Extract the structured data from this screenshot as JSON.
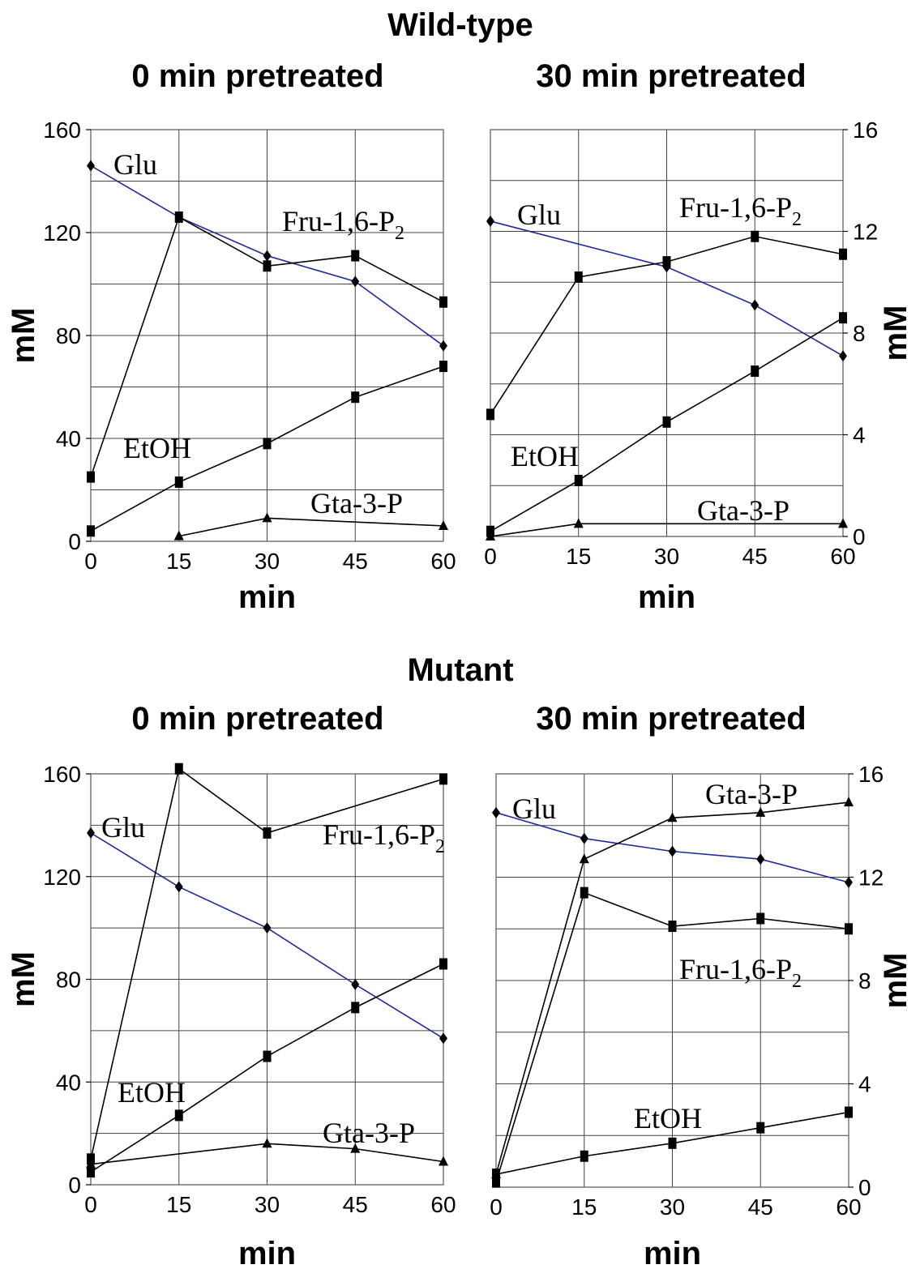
{
  "figure": {
    "sections": [
      {
        "title": "Wild-type"
      },
      {
        "title": "Mutant"
      }
    ]
  },
  "chart_data": [
    {
      "type": "line",
      "section": "Wild-type",
      "title": "0 min pretreated",
      "xlabel": "min",
      "ylabel": "mM",
      "axis_side": "left",
      "x": [
        0,
        15,
        30,
        45,
        60
      ],
      "xlim": [
        0,
        60
      ],
      "ylim": [
        0,
        160
      ],
      "yticks": [
        0,
        40,
        80,
        120,
        160
      ],
      "grid": true,
      "series": [
        {
          "name": "Glu",
          "marker": "diamond",
          "color": "#1f2a9e",
          "values": [
            146,
            126,
            111,
            101,
            76
          ]
        },
        {
          "name": "Fru-1,6-P2",
          "marker": "square",
          "color": "#000000",
          "values": [
            25,
            126,
            107,
            111,
            93
          ]
        },
        {
          "name": "EtOH",
          "marker": "square",
          "color": "#000000",
          "values": [
            4,
            23,
            38,
            56,
            68
          ]
        },
        {
          "name": "Gta-3-P",
          "marker": "triangle",
          "color": "#000000",
          "x": [
            15,
            30,
            60
          ],
          "values": [
            2,
            9,
            6
          ]
        }
      ]
    },
    {
      "type": "line",
      "section": "Wild-type",
      "title": "30 min pretreated",
      "xlabel": "min",
      "ylabel": "mM",
      "axis_side": "right",
      "x": [
        0,
        15,
        30,
        45,
        60
      ],
      "xlim": [
        0,
        60
      ],
      "ylim": [
        0,
        16
      ],
      "yticks": [
        0,
        4,
        8,
        12,
        16
      ],
      "grid": true,
      "series": [
        {
          "name": "Glu",
          "marker": "diamond",
          "color": "#1f2a9e",
          "x": [
            0,
            30,
            45,
            60
          ],
          "values": [
            12.4,
            10.6,
            9.1,
            7.1
          ]
        },
        {
          "name": "Fru-1,6-P2",
          "marker": "square",
          "color": "#000000",
          "values": [
            4.8,
            10.2,
            10.8,
            11.8,
            11.1
          ]
        },
        {
          "name": "EtOH",
          "marker": "square",
          "color": "#000000",
          "values": [
            0.2,
            2.2,
            4.5,
            6.5,
            8.6
          ]
        },
        {
          "name": "Gta-3-P",
          "marker": "triangle",
          "color": "#000000",
          "x": [
            0,
            15,
            60
          ],
          "values": [
            0,
            0.5,
            0.5
          ]
        }
      ]
    },
    {
      "type": "line",
      "section": "Mutant",
      "title": "0 min pretreated",
      "xlabel": "min",
      "ylabel": "mM",
      "axis_side": "left",
      "x": [
        0,
        15,
        30,
        45,
        60
      ],
      "xlim": [
        0,
        60
      ],
      "ylim": [
        0,
        160
      ],
      "yticks": [
        0,
        40,
        80,
        120,
        160
      ],
      "grid": true,
      "series": [
        {
          "name": "Glu",
          "marker": "diamond",
          "color": "#1f2a9e",
          "values": [
            137,
            116,
            100,
            78,
            57
          ]
        },
        {
          "name": "Fru-1,6-P2",
          "marker": "square",
          "color": "#000000",
          "x": [
            0,
            15,
            30,
            60
          ],
          "values": [
            10,
            162,
            137,
            158
          ]
        },
        {
          "name": "EtOH",
          "marker": "square",
          "color": "#000000",
          "values": [
            5,
            27,
            50,
            69,
            86
          ]
        },
        {
          "name": "Gta-3-P",
          "marker": "triangle",
          "color": "#000000",
          "x": [
            0,
            30,
            45,
            60
          ],
          "values": [
            8,
            16,
            14,
            9
          ]
        }
      ]
    },
    {
      "type": "line",
      "section": "Mutant",
      "title": "30 min pretreated",
      "xlabel": "min",
      "ylabel": "mM",
      "axis_side": "right",
      "x": [
        0,
        15,
        30,
        45,
        60
      ],
      "xlim": [
        0,
        60
      ],
      "ylim": [
        0,
        16
      ],
      "yticks": [
        0,
        4,
        8,
        12,
        16
      ],
      "grid": true,
      "series": [
        {
          "name": "Glu",
          "marker": "diamond",
          "color": "#1f2a9e",
          "values": [
            14.5,
            13.5,
            13.0,
            12.7,
            11.8
          ]
        },
        {
          "name": "Gta-3-P",
          "marker": "triangle",
          "color": "#000000",
          "values": [
            0.5,
            12.7,
            14.3,
            14.5,
            14.9
          ]
        },
        {
          "name": "Fru-1,6-P2",
          "marker": "square",
          "color": "#000000",
          "values": [
            0.2,
            11.4,
            10.1,
            10.4,
            10.0
          ]
        },
        {
          "name": "EtOH",
          "marker": "square",
          "color": "#000000",
          "values": [
            0.5,
            1.2,
            1.7,
            2.3,
            2.9
          ]
        }
      ]
    }
  ]
}
